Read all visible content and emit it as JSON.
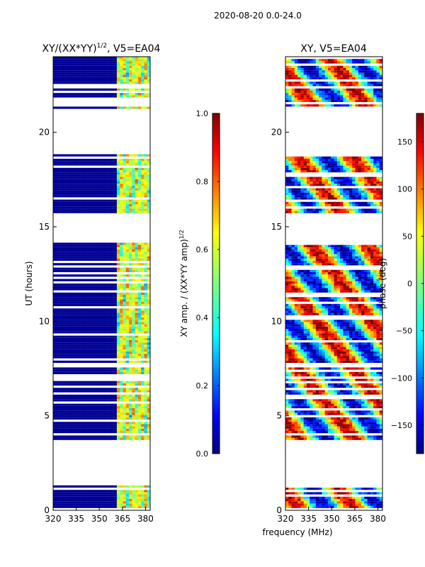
{
  "suptitle": "2020-08-20 0.0-24.0",
  "xlabel": "frequency (MHz)",
  "colors": {
    "background": "#ffffff",
    "gap": "#ffffff",
    "frame": "#000000",
    "jet_low": "#00007f",
    "jet_high": "#7f0000"
  },
  "chart_data": [
    {
      "type": "heatmap",
      "panel": "left",
      "title_base": "XY/(XX*YY)",
      "title_sup": "1/2",
      "title_tail": ", V5=EA04",
      "ylabel": "UT (hours)",
      "xlim": [
        320,
        383
      ],
      "ylim": [
        0,
        24
      ],
      "xticks": [
        320,
        335,
        350,
        365,
        380
      ],
      "yticks": [
        0,
        5,
        10,
        15,
        20
      ],
      "colorbar": {
        "label_base": "XY amp. / (XX*YY amp)",
        "label_sup": "1/2",
        "range": [
          0.0,
          1.0
        ],
        "ticks": [
          "0.0",
          "0.2",
          "0.4",
          "0.6",
          "0.8",
          "1.0"
        ]
      }
    },
    {
      "type": "heatmap",
      "panel": "right",
      "title": "XY, V5=EA04",
      "ylabel": "phase (deg)",
      "xlim": [
        320,
        383
      ],
      "ylim": [
        0,
        24
      ],
      "xticks": [
        320,
        335,
        350,
        365,
        380
      ],
      "yticks": [
        0,
        5,
        10,
        15,
        20
      ],
      "colorbar": {
        "label": "phase (deg)",
        "range": [
          -180,
          180
        ],
        "ticks": [
          "-150",
          "-100",
          "-50",
          "0",
          "50",
          "100",
          "150"
        ]
      }
    }
  ],
  "observation_bands_ut_hours": [
    [
      0.15,
      1.3
    ],
    [
      3.7,
      7.6
    ],
    [
      7.8,
      14.2
    ],
    [
      15.7,
      18.8
    ],
    [
      21.2,
      24.0
    ]
  ],
  "bright_channel_start_mhz": 362
}
